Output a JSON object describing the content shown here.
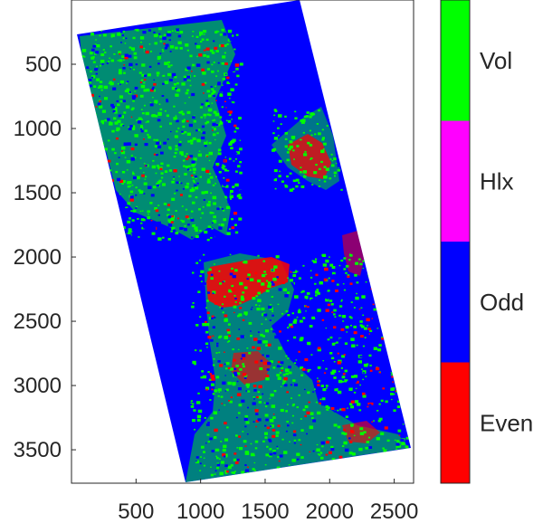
{
  "figure": {
    "x_ticks": [
      {
        "label": "500",
        "value": 500
      },
      {
        "label": "1000",
        "value": 1000
      },
      {
        "label": "1500",
        "value": 1500
      },
      {
        "label": "2000",
        "value": 2000
      },
      {
        "label": "2500",
        "value": 2500
      }
    ],
    "y_ticks": [
      {
        "label": "500",
        "value": 500
      },
      {
        "label": "1000",
        "value": 1000
      },
      {
        "label": "1500",
        "value": 1500
      },
      {
        "label": "2000",
        "value": 2000
      },
      {
        "label": "2500",
        "value": 2500
      },
      {
        "label": "3000",
        "value": 3000
      },
      {
        "label": "3500",
        "value": 3500
      }
    ],
    "x_range": [
      0,
      2650
    ],
    "y_range": [
      0,
      3760
    ],
    "y_reversed": true,
    "colorbar": {
      "classes": [
        {
          "label": "Vol",
          "color": "#00ff00"
        },
        {
          "label": "Hlx",
          "color": "#ff00ff"
        },
        {
          "label": "Odd",
          "color": "#0000ff"
        },
        {
          "label": "Even",
          "color": "#ff0000"
        }
      ]
    }
  }
}
